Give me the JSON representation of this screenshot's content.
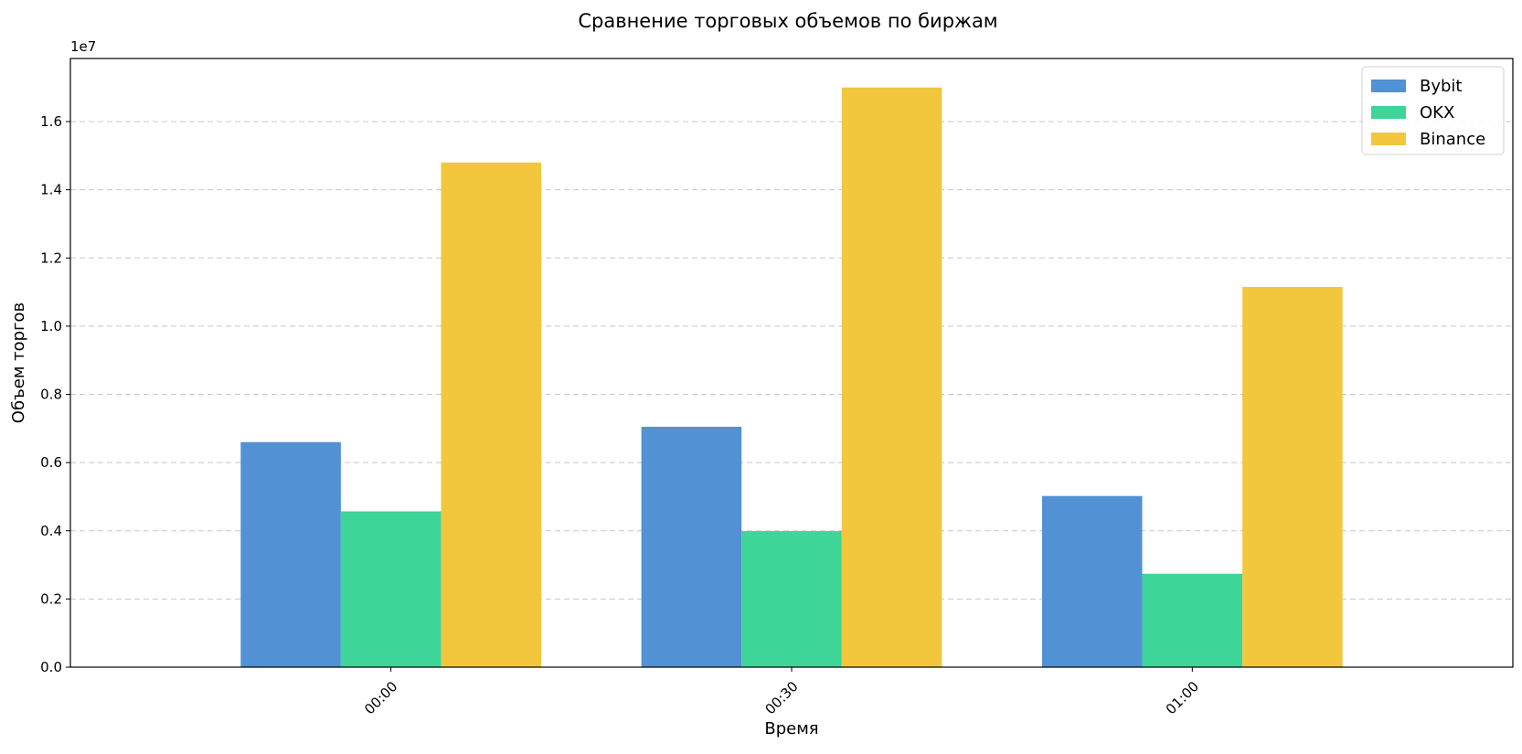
{
  "chart_data": {
    "type": "bar",
    "title": "Сравнение торговых объемов по биржам",
    "xlabel": "Время",
    "ylabel": "Объем торгов",
    "offset_text": "1e7",
    "categories": [
      "00:00",
      "00:30",
      "01:00"
    ],
    "series": [
      {
        "name": "Bybit",
        "color": "#5291d3",
        "values": [
          6600000,
          7050000,
          5020000
        ]
      },
      {
        "name": "OKX",
        "color": "#3dd598",
        "values": [
          4570000,
          3990000,
          2740000
        ]
      },
      {
        "name": "Binance",
        "color": "#f2c73e",
        "values": [
          14800000,
          17000000,
          11150000
        ]
      }
    ],
    "ylim": [
      0,
      17850000
    ],
    "yticks": [
      0,
      2000000,
      4000000,
      6000000,
      8000000,
      10000000,
      12000000,
      14000000,
      16000000
    ],
    "ytick_labels": [
      "0.0",
      "0.2",
      "0.4",
      "0.6",
      "0.8",
      "1.0",
      "1.2",
      "1.4",
      "1.6"
    ],
    "grid": "y-dashed",
    "legend": "top-right"
  }
}
